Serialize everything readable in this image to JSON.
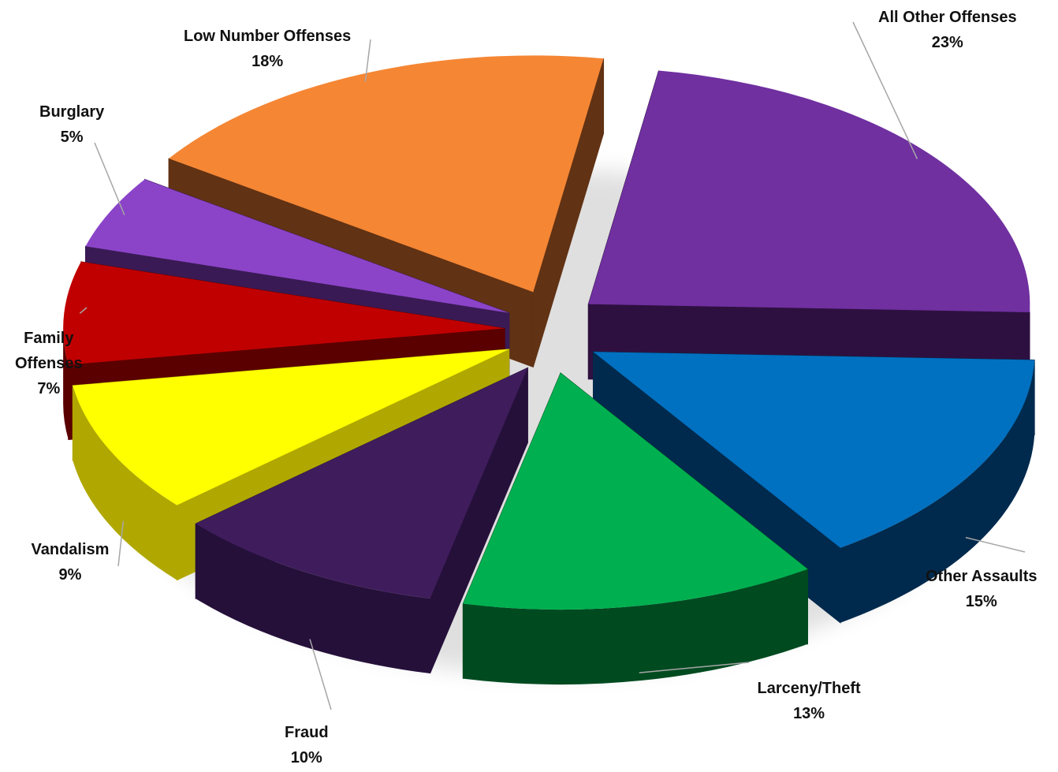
{
  "chart_data": {
    "type": "pie",
    "title": "",
    "slices": [
      {
        "name": "All Other Offenses",
        "label_lines": [
          "All Other Offenses"
        ],
        "percent": 23,
        "percent_label": "23%",
        "top_color": "#7030a0",
        "side_color": "#2e1040"
      },
      {
        "name": "Other Assaults",
        "label_lines": [
          "Other Assaults"
        ],
        "percent": 15,
        "percent_label": "15%",
        "top_color": "#0070c0",
        "side_color": "#002a4d"
      },
      {
        "name": "Larceny/Theft",
        "label_lines": [
          "Larceny/Theft"
        ],
        "percent": 13,
        "percent_label": "13%",
        "top_color": "#00b050",
        "side_color": "#004a20"
      },
      {
        "name": "Fraud",
        "label_lines": [
          "Fraud"
        ],
        "percent": 10,
        "percent_label": "10%",
        "top_color": "#3f1d5c",
        "side_color": "#25103a"
      },
      {
        "name": "Vandalism",
        "label_lines": [
          "Vandalism"
        ],
        "percent": 9,
        "percent_label": "9%",
        "top_color": "#ffff00",
        "side_color": "#b0a800"
      },
      {
        "name": "Family Offenses",
        "label_lines": [
          "Family",
          "Offenses"
        ],
        "percent": 7,
        "percent_label": "7%",
        "top_color": "#c00000",
        "side_color": "#5a0000"
      },
      {
        "name": "Burglary",
        "label_lines": [
          "Burglary"
        ],
        "percent": 5,
        "percent_label": "5%",
        "top_color": "#8b44c8",
        "side_color": "#3a1a55"
      },
      {
        "name": "Low Number Offenses",
        "label_lines": [
          "Low Number Offenses"
        ],
        "percent": 18,
        "percent_label": "18%",
        "top_color": "#f58634",
        "side_color": "#613214"
      }
    ],
    "legend": "none",
    "style": "3d-exploded"
  }
}
